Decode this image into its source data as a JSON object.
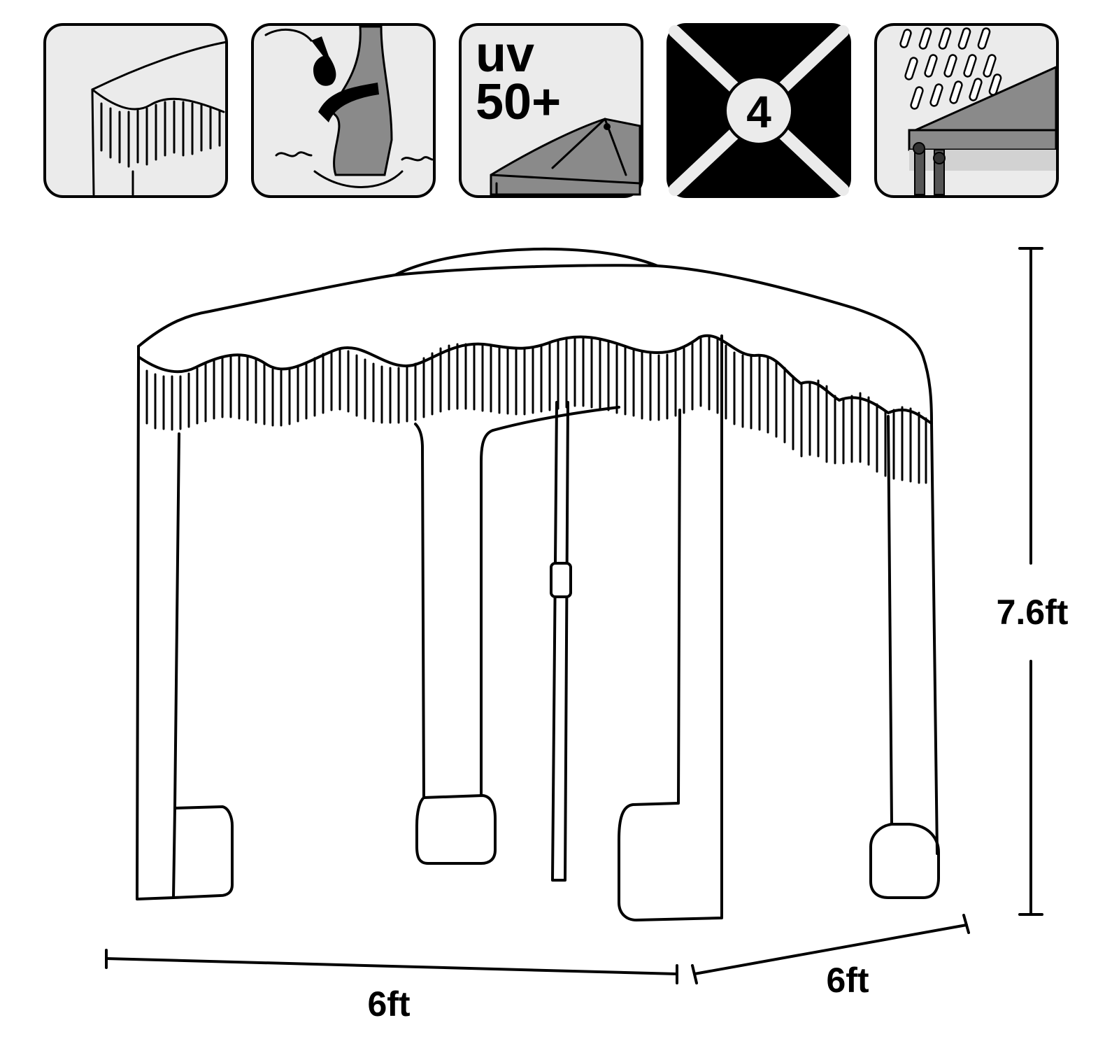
{
  "features": {
    "fringe": {
      "icon": "fringe-canopy-icon"
    },
    "sandbags": {
      "icon": "sand-anchor-bag-icon"
    },
    "uv": {
      "icon": "uv-protection-icon",
      "line1": "uv",
      "line2": "50+"
    },
    "corners": {
      "icon": "four-corner-stakes-icon",
      "number": "4"
    },
    "waterproof": {
      "icon": "rain-waterproof-icon"
    }
  },
  "dimensions": {
    "height": "7.6ft",
    "width": "6ft",
    "depth": "6ft"
  },
  "colors": {
    "outline": "#000000",
    "tile_bg": "#ebebeb",
    "shade_gray": "#8a8a8a",
    "dark_tile_bg": "#000000"
  }
}
